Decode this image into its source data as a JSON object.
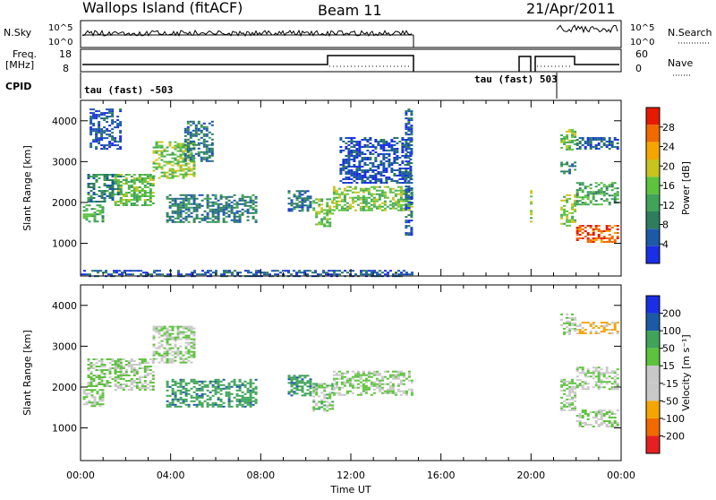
{
  "header": {
    "station": "Wallops Island (fitACF)",
    "beam": "Beam 11",
    "date": "21/Apr/2011"
  },
  "noise_panel": {
    "left_label": "N.Sky",
    "right_label": "N.Search",
    "left_ticks": [
      "10^5",
      "10^0"
    ],
    "right_ticks": [
      "10^5",
      "10^0"
    ]
  },
  "freq_panel": {
    "left_label_1": "Freq.",
    "left_label_2": "[MHz]",
    "right_label": "Nave",
    "left_ticks": [
      "18",
      "8"
    ],
    "right_ticks": [
      "60",
      "0"
    ]
  },
  "cpid_panel": {
    "label": "CPID",
    "annotations": [
      {
        "text": "tau (fast) -503",
        "time_h": 0.0
      },
      {
        "text": "tau (fast) 503",
        "time_h": 20.6
      }
    ]
  },
  "colors": {
    "power": [
      "#1a2ee6",
      "#1c5aa6",
      "#2e7d5e",
      "#3fa35a",
      "#5dc23c",
      "#c8c41e",
      "#f5a500",
      "#f06a00",
      "#e61a00"
    ],
    "velocity": [
      "#e62020",
      "#f06a00",
      "#f5a500",
      "#c8c8c8",
      "#c8c8c8",
      "#5dc23c",
      "#3fa35a",
      "#1c5aa6",
      "#1a2ee6"
    ]
  },
  "chart_data": [
    {
      "type": "heatmap",
      "title": "Power",
      "xlabel": "Time UT",
      "ylabel": "Slant Range [km]",
      "xlim": [
        0,
        24
      ],
      "ylim": [
        200,
        4500
      ],
      "x_ticks": [
        "00:00",
        "04:00",
        "08:00",
        "12:00",
        "16:00",
        "20:00",
        "00:00"
      ],
      "y_ticks": [
        "1000",
        "2000",
        "3000",
        "4000"
      ],
      "colorbar": {
        "label": "Power [dB]",
        "ticks": [
          "4",
          "8",
          "12",
          "16",
          "20",
          "24",
          "28"
        ],
        "range": [
          0,
          30
        ]
      },
      "regions": [
        {
          "t0": 0.1,
          "t1": 1.0,
          "r0": 1550,
          "r1": 1950,
          "value": 13
        },
        {
          "t0": 0.3,
          "t1": 1.8,
          "r0": 2000,
          "r1": 2700,
          "value": 8
        },
        {
          "t0": 0.4,
          "t1": 1.8,
          "r0": 3300,
          "r1": 4300,
          "value": 4
        },
        {
          "t0": 1.5,
          "t1": 3.2,
          "r0": 1950,
          "r1": 2700,
          "value": 14
        },
        {
          "t0": 3.2,
          "t1": 5.0,
          "r0": 2600,
          "r1": 3500,
          "value": 15
        },
        {
          "t0": 4.6,
          "t1": 5.9,
          "r0": 3000,
          "r1": 4000,
          "value": 7
        },
        {
          "t0": 3.8,
          "t1": 7.8,
          "r0": 1500,
          "r1": 2200,
          "value": 8
        },
        {
          "t0": 9.2,
          "t1": 10.2,
          "r0": 1800,
          "r1": 2300,
          "value": 7
        },
        {
          "t0": 10.3,
          "t1": 11.2,
          "r0": 1400,
          "r1": 2100,
          "value": 14
        },
        {
          "t0": 11.2,
          "t1": 14.7,
          "r0": 1800,
          "r1": 2400,
          "value": 15
        },
        {
          "t0": 11.5,
          "t1": 14.7,
          "r0": 2500,
          "r1": 3600,
          "value": 4
        },
        {
          "t0": 14.4,
          "t1": 14.7,
          "r0": 1200,
          "r1": 4300,
          "value": 5
        },
        {
          "t0": 21.3,
          "t1": 22.0,
          "r0": 1450,
          "r1": 2200,
          "value": 16
        },
        {
          "t0": 21.3,
          "t1": 22.0,
          "r0": 3300,
          "r1": 3800,
          "value": 15
        },
        {
          "t0": 21.3,
          "t1": 22.0,
          "r0": 2700,
          "r1": 3000,
          "value": 8
        },
        {
          "t0": 22.0,
          "t1": 23.9,
          "r0": 1050,
          "r1": 1450,
          "value": 26
        },
        {
          "t0": 22.0,
          "t1": 23.9,
          "r0": 1950,
          "r1": 2500,
          "value": 12
        },
        {
          "t0": 22.0,
          "t1": 23.9,
          "r0": 3300,
          "r1": 3600,
          "value": 5
        },
        {
          "t0": 19.95,
          "t1": 20.05,
          "r0": 1500,
          "r1": 2300,
          "value": 16
        },
        {
          "t0": 0.0,
          "t1": 14.7,
          "r0": 200,
          "r1": 350,
          "value": 5
        }
      ]
    },
    {
      "type": "heatmap",
      "title": "Velocity",
      "xlabel": "Time UT",
      "ylabel": "Slant Range [km]",
      "xlim": [
        0,
        24
      ],
      "ylim": [
        200,
        4500
      ],
      "x_ticks": [
        "00:00",
        "04:00",
        "08:00",
        "12:00",
        "16:00",
        "20:00",
        "00:00"
      ],
      "y_ticks": [
        "1000",
        "2000",
        "3000",
        "4000"
      ],
      "colorbar": {
        "label": "Velocity [m s⁻¹]",
        "ticks": [
          "200",
          "100",
          "50",
          "15",
          "-15",
          "-50",
          "-100",
          "-200"
        ]
      },
      "regions": [
        {
          "t0": 0.1,
          "t1": 1.0,
          "r0": 1550,
          "r1": 1950,
          "value": 0
        },
        {
          "t0": 0.3,
          "t1": 1.8,
          "r0": 2000,
          "r1": 2700,
          "value": 0
        },
        {
          "t0": 1.5,
          "t1": 3.2,
          "r0": 1950,
          "r1": 2700,
          "value": 0
        },
        {
          "t0": 3.2,
          "t1": 5.0,
          "r0": 2600,
          "r1": 3500,
          "value": 0
        },
        {
          "t0": 3.8,
          "t1": 7.8,
          "r0": 1500,
          "r1": 2200,
          "value": 40
        },
        {
          "t0": 9.2,
          "t1": 10.2,
          "r0": 1800,
          "r1": 2300,
          "value": 40
        },
        {
          "t0": 10.3,
          "t1": 11.2,
          "r0": 1400,
          "r1": 2100,
          "value": 5
        },
        {
          "t0": 11.2,
          "t1": 14.7,
          "r0": 1800,
          "r1": 2400,
          "value": 0
        },
        {
          "t0": 21.3,
          "t1": 22.0,
          "r0": 1450,
          "r1": 2200,
          "value": 0
        },
        {
          "t0": 21.3,
          "t1": 22.0,
          "r0": 3300,
          "r1": 3800,
          "value": 0
        },
        {
          "t0": 22.0,
          "t1": 23.9,
          "r0": 1050,
          "r1": 1450,
          "value": 0
        },
        {
          "t0": 22.0,
          "t1": 23.9,
          "r0": 1950,
          "r1": 2500,
          "value": 0
        },
        {
          "t0": 22.0,
          "t1": 23.9,
          "r0": 3300,
          "r1": 3600,
          "value": -60
        }
      ]
    }
  ]
}
